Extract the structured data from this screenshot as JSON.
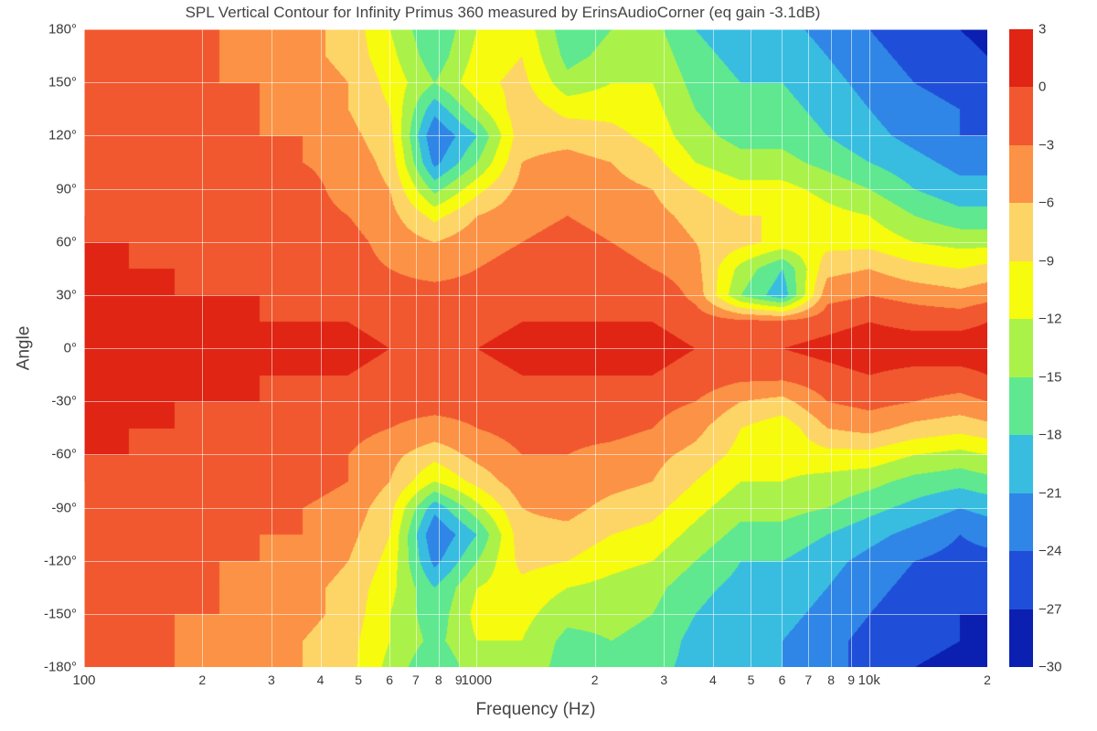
{
  "title": "SPL Vertical Contour for Infinity Primus 360 measured by ErinsAudioCorner (eq gain -3.1dB)",
  "xlabel": "Frequency (Hz)",
  "ylabel": "Angle",
  "type": "contour-heatmap",
  "background_color": "#ffffff",
  "grid_color": "rgba(255,255,255,0.55)",
  "text_color": "#3a3a3a",
  "title_fontsize": 17,
  "label_fontsize": 19,
  "tick_fontsize": 15,
  "x_axis": {
    "scale": "log",
    "min": 100,
    "max": 20000,
    "major_ticks": [
      100,
      1000,
      10000
    ],
    "major_tick_labels": [
      "100",
      "1000",
      "10k"
    ],
    "minor_ticks": [
      200,
      300,
      400,
      500,
      600,
      700,
      800,
      900,
      2000,
      3000,
      4000,
      5000,
      6000,
      7000,
      8000,
      9000,
      20000
    ],
    "minor_tick_labels": [
      "2",
      "3",
      "4",
      "5",
      "6",
      "7",
      "8",
      "9",
      "2",
      "3",
      "4",
      "5",
      "6",
      "7",
      "8",
      "9",
      "2"
    ]
  },
  "y_axis": {
    "scale": "linear",
    "min": -180,
    "max": 180,
    "tick_step": 30,
    "ticks": [
      -180,
      -150,
      -120,
      -90,
      -60,
      -30,
      0,
      30,
      60,
      90,
      120,
      150,
      180
    ],
    "tick_labels": [
      "-180°",
      "-150°",
      "-120°",
      "-90°",
      "-60°",
      "-30°",
      "0°",
      "30°",
      "60°",
      "90°",
      "120°",
      "150°",
      "180°"
    ]
  },
  "colorbar": {
    "min": -30,
    "max": 3,
    "tick_step": 3,
    "ticks": [
      3,
      0,
      -3,
      -6,
      -9,
      -12,
      -15,
      -18,
      -21,
      -24,
      -27,
      -30
    ],
    "levels": [
      {
        "from": 0,
        "to": 3,
        "color": "#e02514"
      },
      {
        "from": -3,
        "to": 0,
        "color": "#f1582f"
      },
      {
        "from": -6,
        "to": -3,
        "color": "#fc9245"
      },
      {
        "from": -9,
        "to": -6,
        "color": "#fdd567"
      },
      {
        "from": -12,
        "to": -9,
        "color": "#f7fb0d"
      },
      {
        "from": -15,
        "to": -12,
        "color": "#aaf24a"
      },
      {
        "from": -18,
        "to": -15,
        "color": "#5fe890"
      },
      {
        "from": -21,
        "to": -18,
        "color": "#38bde1"
      },
      {
        "from": -24,
        "to": -21,
        "color": "#2f86e6"
      },
      {
        "from": -27,
        "to": -24,
        "color": "#1f4fd8"
      },
      {
        "from": -30,
        "to": -27,
        "color": "#0b1fb0"
      }
    ]
  },
  "contour_line_color": "#333333",
  "contour_line_width": 0.4,
  "field": {
    "comment": "approximate normalized SPL (dB) sampled on a coarse grid; rows are angles from +180 to -180 step -15; columns are log-spaced freqs 100..20000",
    "angles": [
      180,
      165,
      150,
      135,
      120,
      105,
      90,
      75,
      60,
      45,
      30,
      15,
      0,
      -15,
      -30,
      -45,
      -60,
      -75,
      -90,
      -105,
      -120,
      -135,
      -150,
      -165,
      -180
    ],
    "freqs": [
      100,
      130,
      170,
      220,
      280,
      360,
      470,
      600,
      780,
      1000,
      1300,
      1700,
      2200,
      2800,
      3600,
      4700,
      6000,
      7800,
      10000,
      13000,
      17000,
      20000
    ],
    "values": [
      [
        -2,
        -3,
        -3,
        -3,
        -4,
        -5,
        -7,
        -12,
        -18,
        -12,
        -10,
        -17,
        -15,
        -14,
        -18,
        -20,
        -20,
        -22,
        -24,
        -26,
        -27,
        -28
      ],
      [
        -2,
        -3,
        -3,
        -3,
        -4,
        -5,
        -7,
        -11,
        -17,
        -11,
        -9,
        -16,
        -14,
        -13,
        -17,
        -19,
        -19,
        -21,
        -23,
        -25,
        -26,
        -27
      ],
      [
        -2,
        -2,
        -3,
        -3,
        -3,
        -4,
        -6,
        -10,
        -15,
        -10,
        -8,
        -14,
        -12,
        -12,
        -16,
        -18,
        -18,
        -20,
        -22,
        -24,
        -25,
        -26
      ],
      [
        -2,
        -2,
        -2,
        -3,
        -3,
        -4,
        -6,
        -9,
        -20,
        -13,
        -7,
        -10,
        -10,
        -11,
        -15,
        -17,
        -17,
        -19,
        -21,
        -23,
        -24,
        -25
      ],
      [
        -1,
        -2,
        -2,
        -2,
        -3,
        -3,
        -5,
        -8,
        -24,
        -18,
        -7,
        -7,
        -8,
        -10,
        -14,
        -16,
        -16,
        -18,
        -20,
        -22,
        -24,
        -24
      ],
      [
        -1,
        -1,
        -2,
        -2,
        -2,
        -3,
        -4,
        -7,
        -22,
        -15,
        -6,
        -5,
        -6,
        -8,
        -12,
        -14,
        -14,
        -16,
        -18,
        -20,
        -22,
        -22
      ],
      [
        -1,
        -1,
        -1,
        -2,
        -2,
        -2,
        -4,
        -6,
        -16,
        -10,
        -5,
        -4,
        -5,
        -6,
        -9,
        -11,
        -11,
        -13,
        -15,
        -18,
        -20,
        -20
      ],
      [
        0,
        -1,
        -1,
        -1,
        -2,
        -2,
        -3,
        -5,
        -10,
        -6,
        -4,
        -3,
        -4,
        -5,
        -7,
        -9,
        -9,
        -11,
        -12,
        -15,
        -17,
        -17
      ],
      [
        0,
        0,
        -1,
        -1,
        -1,
        -2,
        -2,
        -4,
        -6,
        -4,
        -3,
        -2,
        -3,
        -4,
        -6,
        -8,
        -10,
        -10,
        -10,
        -12,
        -13,
        -13
      ],
      [
        0,
        0,
        0,
        -1,
        -1,
        -1,
        -2,
        -3,
        -4,
        -3,
        -2,
        -2,
        -2,
        -3,
        -5,
        -13,
        -18,
        -7,
        -6,
        -8,
        -9,
        -8
      ],
      [
        1,
        1,
        0,
        0,
        0,
        -1,
        -1,
        -2,
        -2,
        -2,
        -1,
        -1,
        -1,
        0,
        -4,
        -15,
        -20,
        -4,
        -3,
        -4,
        -5,
        -4
      ],
      [
        1,
        1,
        1,
        1,
        0,
        0,
        0,
        -1,
        -1,
        -1,
        0,
        0,
        0,
        0,
        -1,
        -2,
        -2,
        -1,
        0,
        -1,
        -1,
        0
      ],
      [
        2,
        2,
        2,
        2,
        1,
        1,
        1,
        0,
        0,
        0,
        1,
        1,
        1,
        1,
        0,
        0,
        0,
        1,
        2,
        2,
        2,
        2
      ],
      [
        1,
        1,
        1,
        1,
        0,
        0,
        0,
        -1,
        -1,
        -1,
        0,
        0,
        0,
        0,
        -1,
        -2,
        -2,
        -1,
        0,
        -1,
        -1,
        0
      ],
      [
        1,
        0,
        0,
        0,
        0,
        -1,
        -1,
        -2,
        -2,
        -2,
        -1,
        -1,
        -1,
        -2,
        -3,
        -6,
        -7,
        -3,
        -2,
        -3,
        -4,
        -3
      ],
      [
        0,
        0,
        0,
        -1,
        -1,
        -1,
        -2,
        -3,
        -4,
        -3,
        -2,
        -2,
        -2,
        -3,
        -5,
        -9,
        -11,
        -6,
        -5,
        -7,
        -8,
        -7
      ],
      [
        0,
        0,
        -1,
        -1,
        -1,
        -2,
        -3,
        -5,
        -8,
        -5,
        -3,
        -3,
        -4,
        -5,
        -7,
        -10,
        -11,
        -10,
        -10,
        -12,
        -13,
        -12
      ],
      [
        0,
        -1,
        -1,
        -1,
        -2,
        -2,
        -3,
        -6,
        -12,
        -8,
        -4,
        -4,
        -5,
        -6,
        -9,
        -12,
        -12,
        -13,
        -14,
        -16,
        -17,
        -16
      ],
      [
        -1,
        -1,
        -1,
        -2,
        -2,
        -3,
        -4,
        -8,
        -20,
        -13,
        -6,
        -5,
        -7,
        -8,
        -11,
        -14,
        -14,
        -15,
        -17,
        -19,
        -21,
        -20
      ],
      [
        -1,
        -1,
        -2,
        -2,
        -3,
        -3,
        -5,
        -9,
        -24,
        -18,
        -7,
        -7,
        -9,
        -10,
        -13,
        -16,
        -16,
        -18,
        -20,
        -22,
        -24,
        -23
      ],
      [
        -2,
        -2,
        -2,
        -3,
        -3,
        -4,
        -6,
        -10,
        -22,
        -15,
        -8,
        -9,
        -11,
        -12,
        -15,
        -18,
        -18,
        -20,
        -22,
        -24,
        -25,
        -25
      ],
      [
        -2,
        -2,
        -3,
        -3,
        -4,
        -5,
        -7,
        -11,
        -18,
        -12,
        -10,
        -12,
        -13,
        -14,
        -17,
        -19,
        -19,
        -21,
        -23,
        -25,
        -26,
        -26
      ],
      [
        -2,
        -3,
        -3,
        -3,
        -4,
        -5,
        -7,
        -12,
        -17,
        -11,
        -11,
        -14,
        -14,
        -15,
        -18,
        -20,
        -20,
        -22,
        -24,
        -26,
        -27,
        -27
      ],
      [
        -2,
        -3,
        -3,
        -4,
        -4,
        -6,
        -8,
        -12,
        -16,
        -12,
        -12,
        -16,
        -15,
        -16,
        -19,
        -21,
        -21,
        -23,
        -25,
        -26,
        -27,
        -28
      ],
      [
        -2,
        -3,
        -3,
        -4,
        -5,
        -6,
        -8,
        -13,
        -18,
        -13,
        -12,
        -17,
        -16,
        -17,
        -19,
        -21,
        -21,
        -23,
        -25,
        -27,
        -28,
        -28
      ]
    ]
  }
}
